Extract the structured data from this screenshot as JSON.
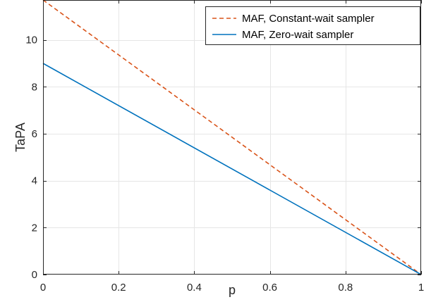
{
  "chart_data": {
    "type": "line",
    "title": "",
    "xlabel": "p",
    "ylabel": "TaPA",
    "xlim": [
      0,
      1
    ],
    "ylim": [
      0,
      11.7
    ],
    "xticks": [
      0,
      0.2,
      0.4,
      0.6,
      0.8,
      1
    ],
    "xtick_labels": [
      "0",
      "0.2",
      "0.4",
      "0.6",
      "0.8",
      "1"
    ],
    "yticks": [
      0,
      2,
      4,
      6,
      8,
      10
    ],
    "ytick_labels": [
      "0",
      "2",
      "4",
      "6",
      "8",
      "10"
    ],
    "grid": true,
    "legend_position": "top-right",
    "series": [
      {
        "name": "MAF, Constant-wait sampler",
        "color": "#d95319",
        "line_style": "dashed",
        "x": [
          0,
          1
        ],
        "y": [
          11.7,
          0
        ]
      },
      {
        "name": "MAF, Zero-wait sampler",
        "color": "#0072bd",
        "line_style": "solid",
        "x": [
          0,
          1
        ],
        "y": [
          9.0,
          0
        ]
      }
    ]
  }
}
